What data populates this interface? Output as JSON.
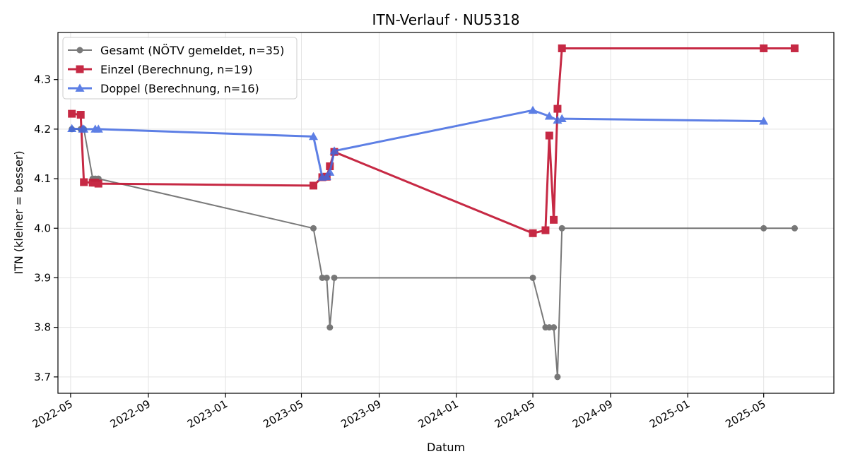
{
  "chart_data": {
    "type": "line",
    "title": "ITN-Verlauf · NU5318",
    "xlabel": "Datum",
    "ylabel": "ITN  (kleiner = besser)",
    "x_axis_type": "date",
    "xlim": [
      "2022-04-11",
      "2025-08-20"
    ],
    "ylim": [
      3.667,
      4.395
    ],
    "xticks": [
      {
        "date": "2022-05-01",
        "label": "2022-05"
      },
      {
        "date": "2022-09-01",
        "label": "2022-09"
      },
      {
        "date": "2023-01-01",
        "label": "2023-01"
      },
      {
        "date": "2023-05-01",
        "label": "2023-05"
      },
      {
        "date": "2023-09-01",
        "label": "2023-09"
      },
      {
        "date": "2024-01-01",
        "label": "2024-01"
      },
      {
        "date": "2024-05-01",
        "label": "2024-05"
      },
      {
        "date": "2024-09-01",
        "label": "2024-09"
      },
      {
        "date": "2025-01-01",
        "label": "2025-01"
      },
      {
        "date": "2025-05-01",
        "label": "2025-05"
      }
    ],
    "yticks": [
      3.7,
      3.8,
      3.9,
      4.0,
      4.1,
      4.2,
      4.3
    ],
    "ytick_labels": [
      "3.7",
      "3.8",
      "3.9",
      "4.0",
      "4.1",
      "4.2",
      "4.3"
    ],
    "grid": true,
    "legend_position": "top-left",
    "series": [
      {
        "name": "Gesamt (NÖTV gemeldet, n=35)",
        "color": "#333333",
        "line_opacity": 0.65,
        "marker": "circle",
        "line_width": 2,
        "points": [
          {
            "x": "2022-05-03",
            "y": 4.2
          },
          {
            "x": "2022-05-17",
            "y": 4.2
          },
          {
            "x": "2022-05-20",
            "y": 4.2
          },
          {
            "x": "2022-05-22",
            "y": 4.2
          },
          {
            "x": "2022-06-05",
            "y": 4.1
          },
          {
            "x": "2022-06-09",
            "y": 4.1
          },
          {
            "x": "2022-06-14",
            "y": 4.1
          },
          {
            "x": "2023-05-20",
            "y": 4.0
          },
          {
            "x": "2023-06-03",
            "y": 3.9
          },
          {
            "x": "2023-06-10",
            "y": 3.9
          },
          {
            "x": "2023-06-15",
            "y": 3.8
          },
          {
            "x": "2023-06-22",
            "y": 3.9
          },
          {
            "x": "2024-05-01",
            "y": 3.9
          },
          {
            "x": "2024-05-21",
            "y": 3.8
          },
          {
            "x": "2024-05-27",
            "y": 3.8
          },
          {
            "x": "2024-06-03",
            "y": 3.8
          },
          {
            "x": "2024-06-09",
            "y": 3.7
          },
          {
            "x": "2024-06-16",
            "y": 4.0
          },
          {
            "x": "2025-05-01",
            "y": 4.0
          },
          {
            "x": "2025-06-19",
            "y": 4.0
          }
        ]
      },
      {
        "name": "Einzel (Berechnung, n=19)",
        "color": "#c41e3a",
        "line_opacity": 0.95,
        "marker": "square",
        "line_width": 3,
        "points": [
          {
            "x": "2022-05-03",
            "y": 4.231
          },
          {
            "x": "2022-05-17",
            "y": 4.229
          },
          {
            "x": "2022-05-22",
            "y": 4.093
          },
          {
            "x": "2022-06-05",
            "y": 4.092
          },
          {
            "x": "2022-06-09",
            "y": 4.092
          },
          {
            "x": "2022-06-14",
            "y": 4.09
          },
          {
            "x": "2023-05-20",
            "y": 4.086
          },
          {
            "x": "2023-06-03",
            "y": 4.103
          },
          {
            "x": "2023-06-10",
            "y": 4.104
          },
          {
            "x": "2023-06-15",
            "y": 4.125
          },
          {
            "x": "2023-06-22",
            "y": 4.154
          },
          {
            "x": "2024-05-01",
            "y": 3.99
          },
          {
            "x": "2024-05-21",
            "y": 3.996
          },
          {
            "x": "2024-05-27",
            "y": 4.187
          },
          {
            "x": "2024-06-03",
            "y": 4.017
          },
          {
            "x": "2024-06-09",
            "y": 4.241
          },
          {
            "x": "2024-06-16",
            "y": 4.363
          },
          {
            "x": "2025-05-01",
            "y": 4.363
          },
          {
            "x": "2025-06-19",
            "y": 4.363
          }
        ]
      },
      {
        "name": "Doppel (Berechnung, n=16)",
        "color": "#4169e1",
        "line_opacity": 0.85,
        "marker": "triangle",
        "line_width": 3,
        "points": [
          {
            "x": "2022-05-03",
            "y": 4.201
          },
          {
            "x": "2022-05-20",
            "y": 4.2
          },
          {
            "x": "2022-05-22",
            "y": 4.2
          },
          {
            "x": "2022-06-09",
            "y": 4.2
          },
          {
            "x": "2022-06-14",
            "y": 4.2
          },
          {
            "x": "2023-05-20",
            "y": 4.185
          },
          {
            "x": "2023-06-03",
            "y": 4.103
          },
          {
            "x": "2023-06-10",
            "y": 4.104
          },
          {
            "x": "2023-06-15",
            "y": 4.113
          },
          {
            "x": "2023-06-22",
            "y": 4.156
          },
          {
            "x": "2024-05-01",
            "y": 4.238
          },
          {
            "x": "2024-05-27",
            "y": 4.226
          },
          {
            "x": "2024-06-09",
            "y": 4.218
          },
          {
            "x": "2024-06-16",
            "y": 4.221
          },
          {
            "x": "2025-05-01",
            "y": 4.216
          }
        ]
      }
    ]
  }
}
